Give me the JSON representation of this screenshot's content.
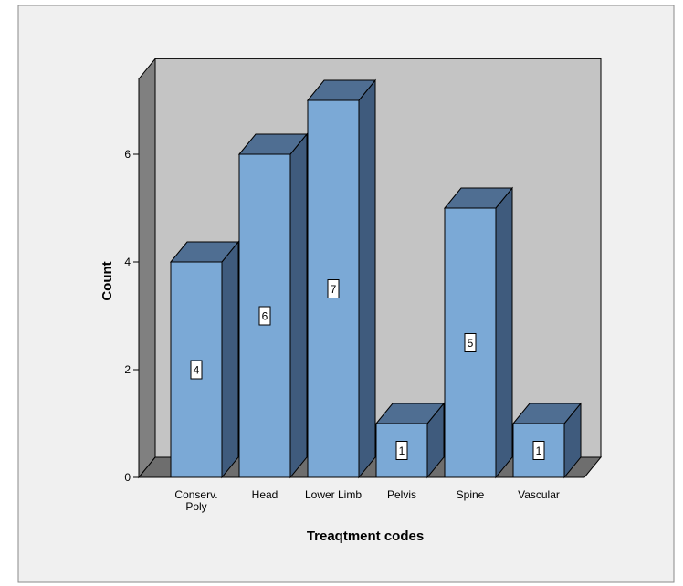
{
  "chart_data": {
    "type": "bar",
    "categories": [
      "Conserv. Poly",
      "Head",
      "Lower Limb",
      "Pelvis",
      "Spine",
      "Vascular"
    ],
    "category_lines": [
      [
        "Conserv.",
        "Poly"
      ],
      [
        "Head"
      ],
      [
        "Lower Limb"
      ],
      [
        "Pelvis"
      ],
      [
        "Spine"
      ],
      [
        "Vascular"
      ]
    ],
    "values": [
      4,
      6,
      7,
      1,
      5,
      1
    ],
    "data_labels": [
      "4",
      "6",
      "7",
      "1",
      "5",
      "1"
    ],
    "xlabel": "Treaqtment codes",
    "ylabel": "Count",
    "yticks": [
      0,
      2,
      4,
      6
    ],
    "ylim": [
      0,
      7.4
    ],
    "grid": false,
    "style": "3d-bar",
    "colors": {
      "bar_front": "#7ba9d6",
      "bar_top": "#4f6e92",
      "bar_side": "#3f5b7d",
      "wall_back": "#c4c4c4",
      "wall_left": "#808080",
      "floor": "#6e6e6e",
      "chart_bg": "#f0f0f0",
      "outline": "#000000"
    }
  }
}
